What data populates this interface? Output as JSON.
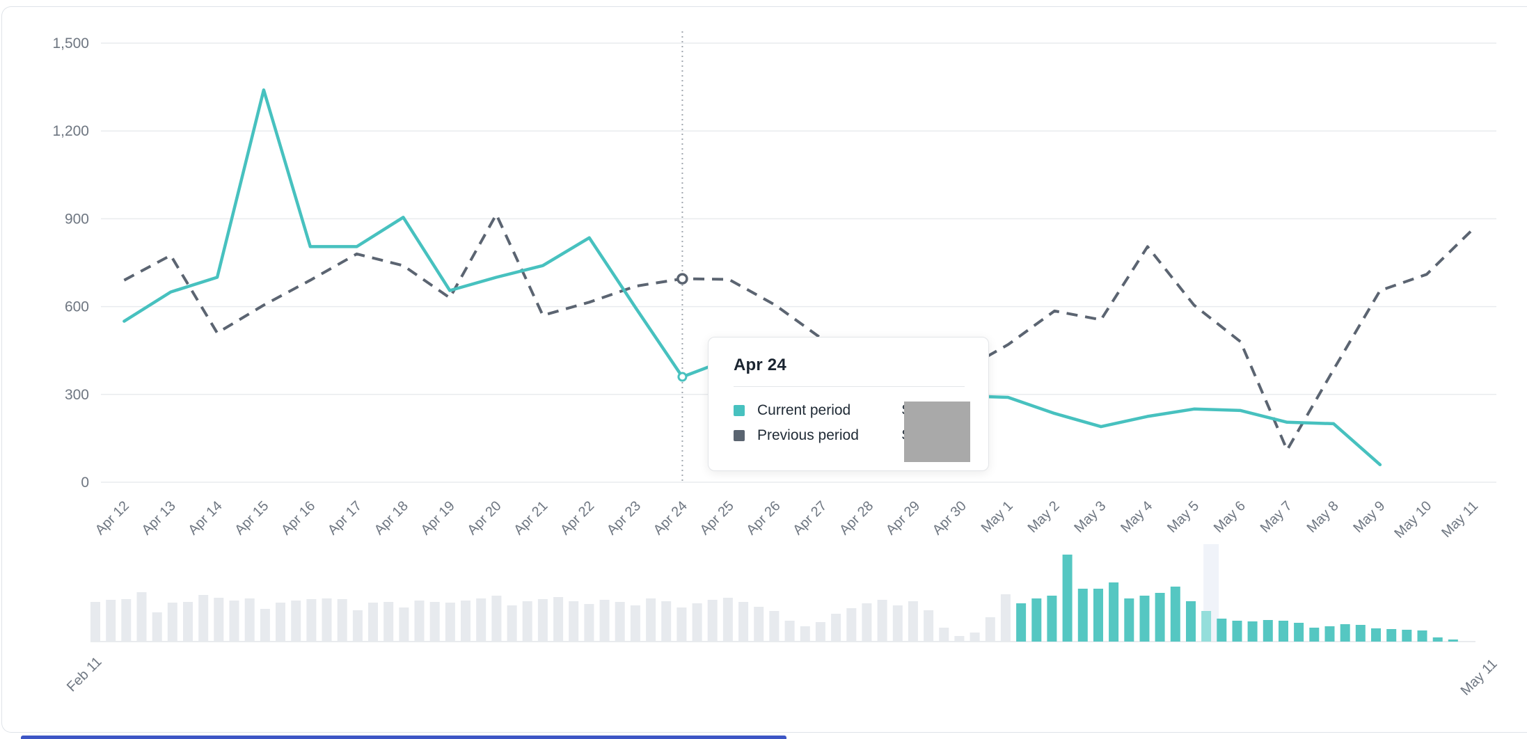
{
  "colors": {
    "current_period": "#47c1bf",
    "previous_period": "#5b6471",
    "grid": "#e9ebee",
    "axis_label": "#6e7681",
    "crosshair": "#a0a6ae",
    "brush_bar_unselected": "#e7eaee",
    "brush_bar_selected": "#55c7c2",
    "brush_bar_highlight": "#94dedb",
    "brush_ghost_band": "#f0f3f9",
    "tooltip_border": "#e3e5e8",
    "redaction_box": "#a9a9a9",
    "card_border": "#dfe3e8",
    "bottom_strip": "#3d56c5"
  },
  "tooltip": {
    "title": "Apr 24",
    "rows": [
      {
        "label": "Current period",
        "value_prefix": "$",
        "value": "",
        "redacted": true
      },
      {
        "label": "Previous period",
        "value_prefix": "$",
        "value": "",
        "redacted": true
      }
    ]
  },
  "chart_data": [
    {
      "type": "line",
      "title": "",
      "categories": [
        "Apr 12",
        "Apr 13",
        "Apr 14",
        "Apr 15",
        "Apr 16",
        "Apr 17",
        "Apr 18",
        "Apr 19",
        "Apr 20",
        "Apr 21",
        "Apr 22",
        "Apr 23",
        "Apr 24",
        "Apr 25",
        "Apr 26",
        "Apr 27",
        "Apr 28",
        "Apr 29",
        "Apr 30",
        "May 1",
        "May 2",
        "May 3",
        "May 4",
        "May 5",
        "May 6",
        "May 7",
        "May 8",
        "May 9",
        "May 10",
        "May 11"
      ],
      "series": [
        {
          "name": "Current period",
          "style": "solid",
          "color": "#47c1bf",
          "values": [
            550,
            650,
            700,
            1340,
            805,
            805,
            905,
            655,
            700,
            740,
            835,
            595,
            360,
            420,
            350,
            330,
            340,
            320,
            295,
            290,
            235,
            190,
            225,
            250,
            245,
            205,
            200,
            60,
            null,
            null
          ]
        },
        {
          "name": "Previous period",
          "style": "dashed",
          "color": "#5b6471",
          "values": [
            690,
            775,
            510,
            605,
            690,
            780,
            740,
            630,
            915,
            570,
            615,
            670,
            695,
            693,
            605,
            490,
            430,
            400,
            380,
            470,
            585,
            555,
            805,
            605,
            480,
            110,
            385,
            655,
            710,
            865
          ]
        }
      ],
      "ylim": [
        0,
        1500
      ],
      "yticks": [
        0,
        300,
        600,
        900,
        1200,
        1500
      ],
      "ytick_labels": [
        "0",
        "300",
        "600",
        "900",
        "1,200",
        "1,500"
      ],
      "grid": "horizontal",
      "legend_position": "in-tooltip",
      "highlight_x": "Apr 24",
      "note": "values Apr 25 - Apr 29 are hidden behind the tooltip (interpolated estimates); current-period line ends at May 9"
    },
    {
      "type": "bar",
      "role": "date-range-brush",
      "start_label": "Feb 11",
      "end_label": "May 11",
      "unit": "px (estimated bar heights, value scale not shown)",
      "selected_from_index": 60,
      "highlight_index": 72,
      "values": [
        57,
        60,
        61,
        71,
        42,
        56,
        57,
        67,
        63,
        59,
        62,
        47,
        56,
        59,
        61,
        62,
        61,
        45,
        56,
        57,
        49,
        59,
        57,
        56,
        59,
        62,
        66,
        52,
        58,
        61,
        64,
        58,
        54,
        60,
        57,
        52,
        62,
        58,
        49,
        55,
        60,
        63,
        57,
        50,
        44,
        30,
        22,
        28,
        40,
        48,
        55,
        60,
        52,
        58,
        45,
        20,
        8,
        13,
        35,
        68,
        55,
        62,
        66,
        125,
        76,
        76,
        85,
        62,
        66,
        70,
        79,
        58,
        44,
        33,
        30,
        29,
        31,
        30,
        27,
        20,
        22,
        25,
        24,
        19,
        18,
        17,
        16,
        6,
        3,
        0
      ]
    }
  ]
}
